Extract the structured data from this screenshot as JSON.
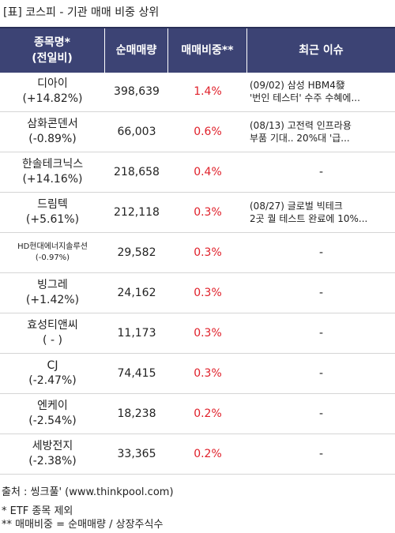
{
  "title": "[표] 코스피 - 기관 매매 비중 상위",
  "table": {
    "columns": [
      [
        "종목명*",
        "(전일비)"
      ],
      [
        "순매매량"
      ],
      [
        "매매비중**"
      ],
      [
        "최근 이슈"
      ]
    ],
    "rows": [
      {
        "name": "디아이",
        "change": "(+14.82%)",
        "volume": "398,639",
        "ratio": "1.4%",
        "issue": [
          "(09/02) 삼성 HBM4發",
          "'번인 테스터' 수주 수혜에..."
        ]
      },
      {
        "name": "삼화콘덴서",
        "change": "(-0.89%)",
        "volume": "66,003",
        "ratio": "0.6%",
        "issue": [
          "(08/13) 고전력 인프라용",
          "부품 기대.. 20%대 '급..."
        ]
      },
      {
        "name": "한솔테크닉스",
        "change": "(+14.16%)",
        "volume": "218,658",
        "ratio": "0.4%",
        "issue": [
          "-"
        ]
      },
      {
        "name": "드림텍",
        "change": "(+5.61%)",
        "volume": "212,118",
        "ratio": "0.3%",
        "issue": [
          "(08/27) 글로벌 빅테크",
          "2곳 퀄 테스트 완료에 10%..."
        ]
      },
      {
        "name": "HD현대에너지솔루션",
        "change": "(-0.97%)",
        "volume": "29,582",
        "ratio": "0.3%",
        "issue": [
          "-"
        ]
      },
      {
        "name": "빙그레",
        "change": "(+1.42%)",
        "volume": "24,162",
        "ratio": "0.3%",
        "issue": [
          "-"
        ]
      },
      {
        "name": "효성티앤씨",
        "change": "( - )",
        "volume": "11,173",
        "ratio": "0.3%",
        "issue": [
          "-"
        ]
      },
      {
        "name": "CJ",
        "change": "(-2.47%)",
        "volume": "74,415",
        "ratio": "0.3%",
        "issue": [
          "-"
        ]
      },
      {
        "name": "엔케이",
        "change": "(-2.54%)",
        "volume": "18,238",
        "ratio": "0.2%",
        "issue": [
          "-"
        ]
      },
      {
        "name": "세방전지",
        "change": "(-2.38%)",
        "volume": "33,365",
        "ratio": "0.2%",
        "issue": [
          "-"
        ]
      }
    ]
  },
  "notes": [
    "출처 : 씽크풀' (www.thinkpool.com)",
    "* ETF 종목 제외",
    "** 매매비중 = 순매매량 / 상장주식수"
  ]
}
